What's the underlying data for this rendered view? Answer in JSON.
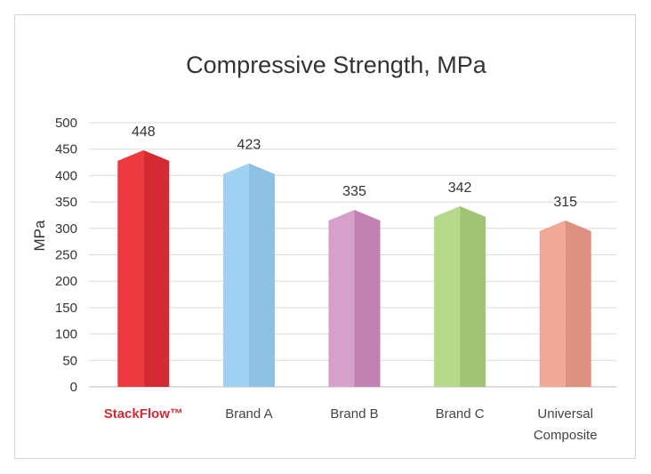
{
  "chart_data": {
    "type": "bar",
    "title": "Compressive Strength, MPa",
    "ylabel": "MPa",
    "xlabel": "",
    "ylim": [
      0,
      500
    ],
    "yticks": [
      0,
      50,
      100,
      150,
      200,
      250,
      300,
      350,
      400,
      450,
      500
    ],
    "grid": true,
    "categories": [
      {
        "lines": [
          "StackFlow™"
        ],
        "highlight": true
      },
      {
        "lines": [
          "Brand A"
        ],
        "highlight": false
      },
      {
        "lines": [
          "Brand B"
        ],
        "highlight": false
      },
      {
        "lines": [
          "Brand C"
        ],
        "highlight": false
      },
      {
        "lines": [
          "Universal",
          "Composite"
        ],
        "highlight": false
      }
    ],
    "values": [
      448,
      423,
      335,
      342,
      315
    ],
    "colors": [
      {
        "left": "#ee3a3f",
        "right": "#d52a33"
      },
      {
        "left": "#9fd2f2",
        "right": "#8ec0e2"
      },
      {
        "left": "#d6a0ca",
        "right": "#bf82b1"
      },
      {
        "left": "#b6d88a",
        "right": "#a0c473"
      },
      {
        "left": "#f1a896",
        "right": "#df9181"
      }
    ],
    "highlight_label_color": "#d52a33",
    "label_color": "#444444"
  }
}
